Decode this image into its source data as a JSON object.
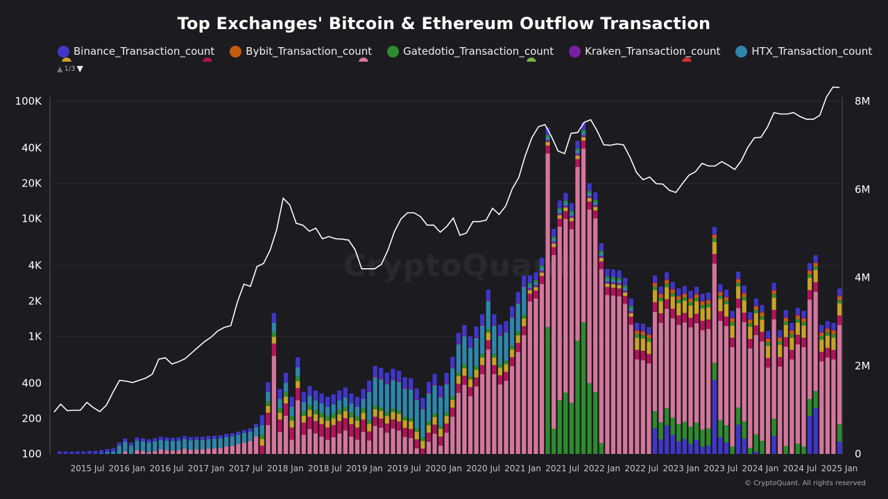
{
  "title": "Top Exchanges' Bitcoin & Ethereum Outflow Transaction",
  "legend": {
    "items": [
      {
        "label": "Binance_Transaction_count",
        "color": "#3f37c9"
      },
      {
        "label": "Bybit_Transaction_count",
        "color": "#c55a11"
      },
      {
        "label": "Gatedotio_Transaction_count",
        "color": "#2e8b2e"
      },
      {
        "label": "Kraken_Transaction_count",
        "color": "#7b1fa2"
      },
      {
        "label": "HTX_Transaction_count",
        "color": "#2e86ab"
      }
    ],
    "hidden_colors": [
      "#c9a227",
      "#b5125a",
      "#d4769b",
      "#7cb342",
      "#d32f2f"
    ],
    "pager": {
      "text": "1/3",
      "up_icon": "triangle-up",
      "down_icon": "triangle-down"
    }
  },
  "watermark": "CryptoQuant",
  "copyright": "© CryptoQuant. All rights reserved",
  "chart_data": {
    "type": "bar",
    "stacked": true,
    "left_axis": {
      "scale": "log",
      "ticks": [
        "100K",
        "40K",
        "20K",
        "10K",
        "4K",
        "2K",
        "1K",
        "400",
        "200",
        "100"
      ],
      "tick_values": [
        100000,
        40000,
        20000,
        10000,
        4000,
        2000,
        1000,
        400,
        200,
        100
      ],
      "range": [
        100,
        100000
      ]
    },
    "right_axis": {
      "scale": "linear",
      "ticks": [
        "8M",
        "6M",
        "4M",
        "2M",
        "0"
      ],
      "tick_values": [
        8000000,
        6000000,
        4000000,
        2000000,
        0
      ],
      "range": [
        0,
        8000000
      ]
    },
    "x_tick_labels": [
      "2015 Jul",
      "2016 Jan",
      "2016 Jul",
      "2017 Jan",
      "2017 Jul",
      "2018 Jan",
      "2018 Jul",
      "2019 Jan",
      "2019 Jul",
      "2020 Jan",
      "2020 Jul",
      "2021 Jan",
      "2021 Jul",
      "2022 Jan",
      "2022 Jul",
      "2023 Jan",
      "2023 Jul",
      "2024 Jan",
      "2024 Jul",
      "2025 Jan"
    ],
    "line_series": {
      "name": "",
      "axis": "right",
      "color": "#ffffff",
      "values": [
        950000,
        1130000,
        980000,
        990000,
        990000,
        1170000,
        1050000,
        960000,
        1110000,
        1400000,
        1670000,
        1650000,
        1620000,
        1670000,
        1720000,
        1810000,
        2150000,
        2180000,
        2040000,
        2090000,
        2160000,
        2290000,
        2420000,
        2550000,
        2650000,
        2790000,
        2870000,
        2910000,
        3440000,
        3850000,
        3800000,
        4250000,
        4320000,
        4620000,
        5080000,
        5800000,
        5650000,
        5230000,
        5190000,
        5050000,
        5120000,
        4880000,
        4930000,
        4880000,
        4870000,
        4850000,
        4630000,
        4200000,
        4200000,
        4200000,
        4300000,
        4620000,
        5040000,
        5330000,
        5470000,
        5470000,
        5380000,
        5190000,
        5190000,
        5030000,
        5160000,
        5350000,
        4960000,
        5010000,
        5270000,
        5270000,
        5300000,
        5570000,
        5430000,
        5620000,
        6010000,
        6270000,
        6770000,
        7170000,
        7420000,
        7470000,
        7200000,
        6870000,
        6810000,
        7270000,
        7290000,
        7520000,
        7580000,
        7320000,
        7010000,
        7000000,
        7030000,
        7010000,
        6730000,
        6380000,
        6220000,
        6280000,
        6130000,
        6120000,
        5980000,
        5930000,
        6130000,
        6320000,
        6400000,
        6590000,
        6530000,
        6530000,
        6630000,
        6550000,
        6450000,
        6650000,
        6950000,
        7170000,
        7180000,
        7410000,
        7740000,
        7710000,
        7710000,
        7740000,
        7650000,
        7590000,
        7590000,
        7680000,
        8090000,
        8320000,
        8310000
      ]
    },
    "bar_totals": [
      105,
      105,
      105,
      105,
      105,
      106,
      106,
      108,
      110,
      112,
      125,
      135,
      125,
      138,
      136,
      133,
      136,
      140,
      138,
      137,
      138,
      142,
      139,
      140,
      140,
      142,
      143,
      144,
      148,
      150,
      155,
      160,
      165,
      180,
      210,
      400,
      1550,
      350,
      480,
      300,
      650,
      330,
      370,
      340,
      320,
      300,
      315,
      340,
      360,
      320,
      300,
      350,
      420,
      560,
      540,
      490,
      530,
      510,
      450,
      440,
      360,
      300,
      410,
      480,
      380,
      490,
      670,
      1070,
      1250,
      1000,
      1210,
      1540,
      2500,
      1540,
      1260,
      1350,
      1800,
      2380,
      3300,
      3300,
      3500,
      4650,
      60000,
      8200,
      14300,
      16600,
      13600,
      46000,
      66000,
      20000,
      16800,
      6200,
      3750,
      3700,
      3650,
      3150,
      2100,
      1300,
      1280,
      1200,
      3300,
      2660,
      3500,
      2910,
      2560,
      2680,
      2440,
      2640,
      2300,
      2360,
      8500,
      2770,
      2500,
      1650,
      3550,
      2700,
      1610,
      2100,
      1850,
      1110,
      2850,
      1130,
      1670,
      1300,
      1750,
      1650,
      4200,
      4900,
      1250,
      1350,
      1300,
      2550
    ]
  }
}
